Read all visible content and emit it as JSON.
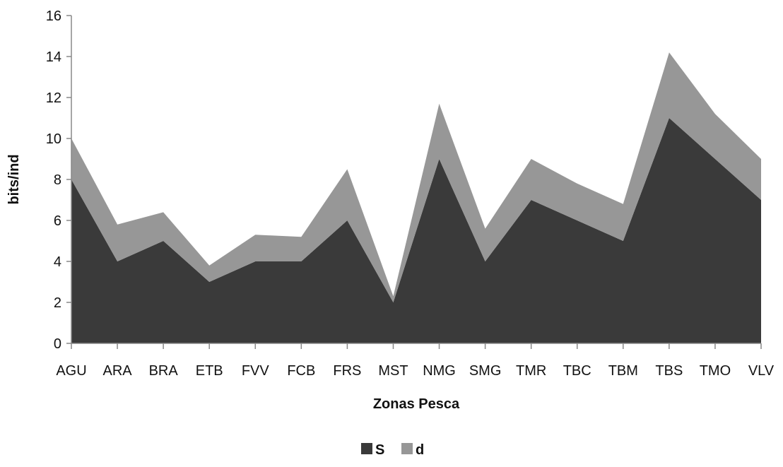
{
  "chart_data": {
    "type": "area",
    "stacked": true,
    "categories": [
      "AGU",
      "ARA",
      "BRA",
      "ETB",
      "FVV",
      "FCB",
      "FRS",
      "MST",
      "NMG",
      "SMG",
      "TMR",
      "TBC",
      "TBM",
      "TBS",
      "TMO",
      "VLV"
    ],
    "series": [
      {
        "name": "S",
        "values": [
          8,
          4,
          5,
          3,
          4,
          4,
          6,
          2,
          9,
          4,
          7,
          6,
          5,
          11,
          9,
          7
        ],
        "color": "#3a3a3a"
      },
      {
        "name": "d",
        "values": [
          2,
          1.8,
          1.4,
          0.8,
          1.3,
          1.2,
          2.5,
          0.3,
          2.7,
          1.6,
          2,
          1.8,
          1.8,
          3.2,
          2.2,
          2
        ],
        "color": "#979797"
      }
    ],
    "xlabel": "Zonas Pesca",
    "ylabel": "bits/ind",
    "ylim": [
      0,
      16
    ],
    "yticks": [
      0,
      2,
      4,
      6,
      8,
      10,
      12,
      14,
      16
    ],
    "grid": false,
    "legend_position": "bottom"
  }
}
